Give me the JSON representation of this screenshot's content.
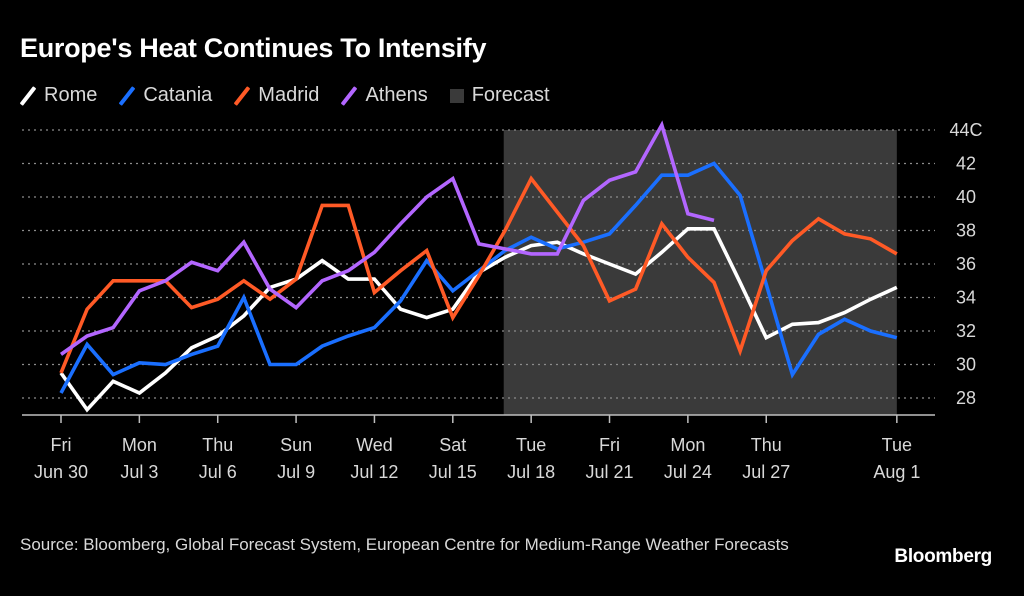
{
  "chart_data": {
    "type": "line",
    "title": "Europe's Heat Continues To Intensify",
    "xlabel": "",
    "ylabel": "",
    "y_unit_suffix": "C",
    "ylim": [
      27,
      44
    ],
    "yticks": [
      28,
      30,
      32,
      34,
      36,
      38,
      40,
      42,
      44
    ],
    "ytick_labels": [
      "28",
      "30",
      "32",
      "34",
      "36",
      "38",
      "40",
      "42",
      "44C"
    ],
    "grid": "horizontal-dotted",
    "legend_position": "top-left",
    "x_start_date": "Jun 30",
    "x": [
      "Jun 30",
      "Jul 1",
      "Jul 2",
      "Jul 3",
      "Jul 4",
      "Jul 5",
      "Jul 6",
      "Jul 7",
      "Jul 8",
      "Jul 9",
      "Jul 10",
      "Jul 11",
      "Jul 12",
      "Jul 13",
      "Jul 14",
      "Jul 15",
      "Jul 16",
      "Jul 17",
      "Jul 18",
      "Jul 19",
      "Jul 20",
      "Jul 21",
      "Jul 22",
      "Jul 23",
      "Jul 24",
      "Jul 25",
      "Jul 26",
      "Jul 27",
      "Jul 28",
      "Jul 29",
      "Jul 30",
      "Jul 31",
      "Aug 1"
    ],
    "xticks": [
      {
        "index": 0,
        "day": "Fri",
        "date": "Jun 30"
      },
      {
        "index": 3,
        "day": "Mon",
        "date": "Jul 3"
      },
      {
        "index": 6,
        "day": "Thu",
        "date": "Jul 6"
      },
      {
        "index": 9,
        "day": "Sun",
        "date": "Jul 9"
      },
      {
        "index": 12,
        "day": "Wed",
        "date": "Jul 12"
      },
      {
        "index": 15,
        "day": "Sat",
        "date": "Jul 15"
      },
      {
        "index": 18,
        "day": "Tue",
        "date": "Jul 18"
      },
      {
        "index": 21,
        "day": "Fri",
        "date": "Jul 21"
      },
      {
        "index": 24,
        "day": "Mon",
        "date": "Jul 24"
      },
      {
        "index": 27,
        "day": "Thu",
        "date": "Jul 27"
      },
      {
        "index": 32,
        "day": "Tue",
        "date": "Aug 1"
      }
    ],
    "forecast_region": {
      "label": "Forecast",
      "start_index": 16.95,
      "end_index": 32,
      "color": "#3a3a3a"
    },
    "series": [
      {
        "name": "Rome",
        "color": "#ffffff",
        "values": [
          29.5,
          27.3,
          29.0,
          28.3,
          29.5,
          31.0,
          31.7,
          32.9,
          34.6,
          35.1,
          36.2,
          35.1,
          35.1,
          33.3,
          32.8,
          33.3,
          35.5,
          36.4,
          37.1,
          37.3,
          36.6,
          36.0,
          35.4,
          36.7,
          38.1,
          38.1,
          34.9,
          31.6,
          32.4,
          32.5,
          33.1,
          33.9,
          34.6
        ]
      },
      {
        "name": "Catania",
        "color": "#1a6fff",
        "values": [
          28.3,
          31.2,
          29.4,
          30.1,
          30.0,
          30.6,
          31.1,
          34.0,
          30.0,
          30.0,
          31.1,
          31.7,
          32.2,
          33.8,
          36.2,
          34.4,
          35.6,
          36.8,
          37.6,
          36.9,
          37.3,
          37.8,
          39.5,
          41.3,
          41.3,
          42.0,
          40.1,
          34.8,
          29.4,
          31.8,
          32.7,
          32.0,
          31.6
        ]
      },
      {
        "name": "Madrid",
        "color": "#ff5a26",
        "values": [
          29.5,
          33.3,
          35.0,
          35.0,
          35.0,
          33.4,
          33.9,
          35.0,
          33.9,
          35.1,
          39.5,
          39.5,
          34.3,
          35.6,
          36.8,
          32.8,
          35.3,
          38.0,
          41.1,
          39.1,
          37.1,
          33.8,
          34.5,
          38.4,
          36.4,
          34.9,
          30.8,
          35.6,
          37.4,
          38.7,
          37.8,
          37.5,
          36.6
        ]
      },
      {
        "name": "Athens",
        "color": "#b366ff",
        "values": [
          30.6,
          31.7,
          32.2,
          34.4,
          35.0,
          36.1,
          35.6,
          37.3,
          34.5,
          33.4,
          35.0,
          35.6,
          36.7,
          38.4,
          40.0,
          41.1,
          37.2,
          36.9,
          36.6,
          36.6,
          39.8,
          41.0,
          41.5,
          44.3,
          39.0,
          38.6
        ]
      }
    ]
  },
  "legend": {
    "items": [
      {
        "label": "Rome",
        "color": "#ffffff",
        "kind": "line"
      },
      {
        "label": "Catania",
        "color": "#1a6fff",
        "kind": "line"
      },
      {
        "label": "Madrid",
        "color": "#ff5a26",
        "kind": "line"
      },
      {
        "label": "Athens",
        "color": "#b366ff",
        "kind": "line"
      },
      {
        "label": "Forecast",
        "color": "#3a3a3a",
        "kind": "box"
      }
    ]
  },
  "footer": {
    "source": "Source: Bloomberg, Global Forecast System, European Centre for Medium-Range Weather Forecasts",
    "brand": "Bloomberg"
  }
}
